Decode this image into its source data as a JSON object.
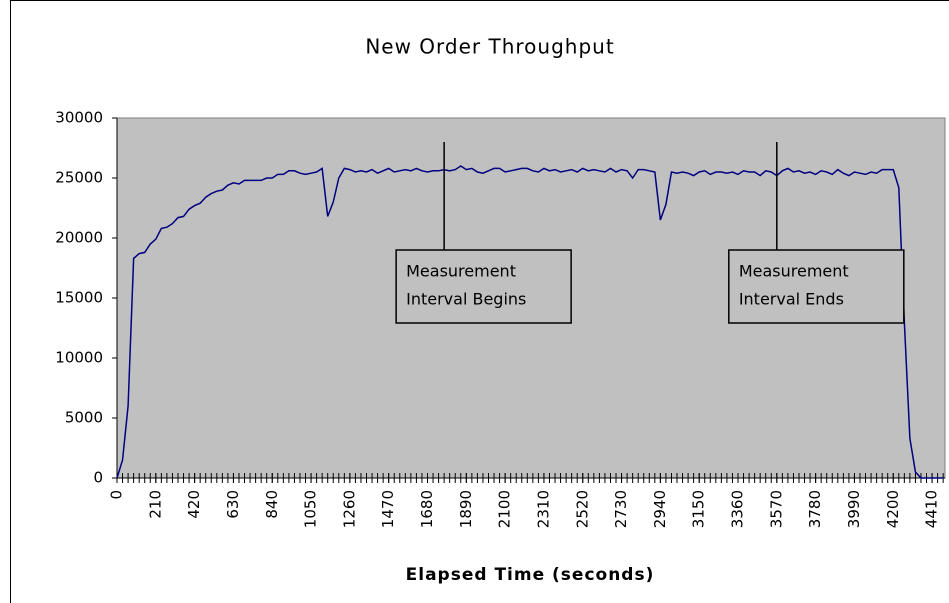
{
  "chart_data": {
    "type": "line",
    "title": "New Order Throughput",
    "x_label": "Elapsed Time (seconds)",
    "x": [
      0,
      30,
      60,
      90,
      120,
      150,
      180,
      210,
      240,
      270,
      300,
      330,
      360,
      390,
      420,
      450,
      480,
      510,
      540,
      570,
      600,
      630,
      660,
      690,
      720,
      750,
      780,
      810,
      840,
      870,
      900,
      930,
      960,
      990,
      1020,
      1050,
      1080,
      1110,
      1140,
      1170,
      1200,
      1230,
      1260,
      1290,
      1320,
      1350,
      1380,
      1410,
      1440,
      1470,
      1500,
      1530,
      1560,
      1590,
      1620,
      1650,
      1680,
      1710,
      1740,
      1770,
      1800,
      1830,
      1860,
      1890,
      1920,
      1950,
      1980,
      2010,
      2040,
      2070,
      2100,
      2130,
      2160,
      2190,
      2220,
      2250,
      2280,
      2310,
      2340,
      2370,
      2400,
      2430,
      2460,
      2490,
      2520,
      2550,
      2580,
      2610,
      2640,
      2670,
      2700,
      2730,
      2760,
      2790,
      2820,
      2850,
      2880,
      2910,
      2940,
      2970,
      3000,
      3030,
      3060,
      3090,
      3120,
      3150,
      3180,
      3210,
      3240,
      3270,
      3300,
      3330,
      3360,
      3390,
      3420,
      3450,
      3480,
      3510,
      3540,
      3570,
      3600,
      3630,
      3660,
      3690,
      3720,
      3750,
      3780,
      3810,
      3840,
      3870,
      3900,
      3930,
      3960,
      3990,
      4020,
      4050,
      4080,
      4110,
      4140,
      4170,
      4200,
      4230,
      4260,
      4290,
      4320,
      4350,
      4380,
      4410,
      4440,
      4470
    ],
    "series": [
      {
        "name": "New Order Throughput",
        "color": "#000080",
        "values": [
          0,
          1500,
          6000,
          18300,
          18700,
          18800,
          19500,
          19900,
          20800,
          20900,
          21200,
          21700,
          21800,
          22400,
          22700,
          22900,
          23400,
          23700,
          23900,
          24000,
          24400,
          24600,
          24500,
          24800,
          24800,
          24800,
          24800,
          25000,
          25000,
          25300,
          25300,
          25600,
          25600,
          25400,
          25300,
          25400,
          25500,
          25800,
          21800,
          23000,
          25000,
          25800,
          25700,
          25500,
          25600,
          25500,
          25700,
          25400,
          25600,
          25800,
          25500,
          25600,
          25700,
          25600,
          25800,
          25600,
          25500,
          25600,
          25600,
          25700,
          25600,
          25700,
          26000,
          25700,
          25800,
          25500,
          25400,
          25600,
          25800,
          25800,
          25500,
          25600,
          25700,
          25800,
          25800,
          25600,
          25500,
          25800,
          25600,
          25700,
          25500,
          25600,
          25700,
          25500,
          25800,
          25600,
          25700,
          25600,
          25500,
          25800,
          25500,
          25700,
          25600,
          25000,
          25700,
          25700,
          25600,
          25500,
          21500,
          22800,
          25500,
          25400,
          25500,
          25400,
          25200,
          25500,
          25600,
          25300,
          25500,
          25500,
          25400,
          25500,
          25300,
          25600,
          25500,
          25500,
          25200,
          25600,
          25500,
          25200,
          25600,
          25800,
          25500,
          25600,
          25400,
          25500,
          25300,
          25600,
          25500,
          25300,
          25700,
          25400,
          25200,
          25500,
          25400,
          25300,
          25500,
          25400,
          25700,
          25700,
          25700,
          24200,
          13000,
          3300,
          500,
          0,
          0,
          0,
          0,
          0
        ]
      }
    ],
    "xlim": [
      0,
      4480
    ],
    "xticks": [
      0,
      210,
      420,
      630,
      840,
      1050,
      1260,
      1470,
      1680,
      1890,
      2100,
      2310,
      2520,
      2730,
      2940,
      3150,
      3360,
      3570,
      3780,
      3990,
      4200,
      4410
    ],
    "ylim": [
      0,
      30000
    ],
    "yticks": [
      0,
      5000,
      10000,
      15000,
      20000,
      25000,
      30000
    ],
    "grid": false,
    "plot_background": "#c0c0c0",
    "annotations": [
      {
        "x": 1770,
        "lines": [
          "Measurement",
          "Interval Begins"
        ]
      },
      {
        "x": 3570,
        "lines": [
          "Measurement",
          "Interval Ends"
        ]
      }
    ]
  }
}
